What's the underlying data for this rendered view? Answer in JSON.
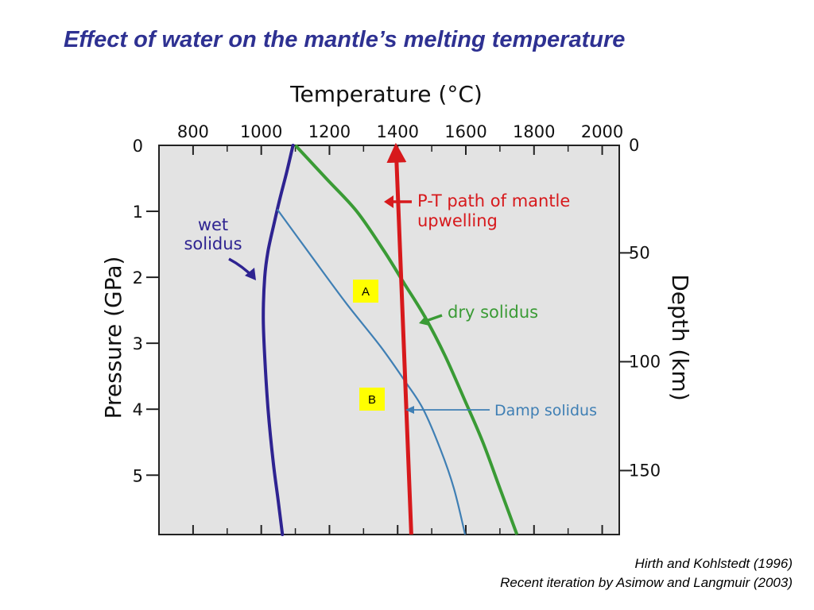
{
  "slide": {
    "title": "Effect of water on the mantle’s melting temperature",
    "credit_line1": "Hirth and Kohlstedt (1996)",
    "credit_line2": "Recent iteration by Asimow and Langmuir (2003)"
  },
  "chart_data": {
    "type": "line",
    "xlabel_top": "Temperature (°C)",
    "ylabel_left": "Pressure (GPa)",
    "ylabel_right": "Depth (km)",
    "xlim": [
      700,
      2050
    ],
    "ylim": [
      0,
      5.9
    ],
    "x_ticks": [
      800,
      1000,
      1200,
      1400,
      1600,
      1800,
      2000
    ],
    "x_tick_labels": [
      "800",
      "1000",
      "1200",
      "1400",
      "1600",
      "1800",
      "2000"
    ],
    "y_ticks": [
      0,
      1,
      2,
      3,
      4,
      5
    ],
    "y_tick_labels": [
      "0",
      "1",
      "2",
      "3",
      "4",
      "5"
    ],
    "depth_ticks": [
      {
        "label": "0",
        "pressure": 0
      },
      {
        "label": "50",
        "pressure": 1.63
      },
      {
        "label": "100",
        "pressure": 3.28
      },
      {
        "label": "150",
        "pressure": 4.93
      }
    ],
    "plot_background": "#e3e3e3",
    "series": [
      {
        "key": "wet",
        "color": "#2e2391",
        "points": [
          [
            1093,
            0
          ],
          [
            1075,
            0.4
          ],
          [
            1055,
            0.8
          ],
          [
            1037,
            1.2
          ],
          [
            1020,
            1.6
          ],
          [
            1010,
            2.0
          ],
          [
            1006,
            2.6
          ],
          [
            1010,
            3.2
          ],
          [
            1020,
            4.0
          ],
          [
            1035,
            4.8
          ],
          [
            1050,
            5.4
          ],
          [
            1062,
            5.9
          ]
        ]
      },
      {
        "key": "dry",
        "color": "#3a9b35",
        "points": [
          [
            1100,
            0
          ],
          [
            1190,
            0.5
          ],
          [
            1280,
            1.0
          ],
          [
            1360,
            1.6
          ],
          [
            1420,
            2.1
          ],
          [
            1480,
            2.6
          ],
          [
            1540,
            3.2
          ],
          [
            1600,
            3.9
          ],
          [
            1650,
            4.5
          ],
          [
            1700,
            5.2
          ],
          [
            1750,
            5.9
          ]
        ]
      },
      {
        "key": "damp",
        "color": "#3f7fb4",
        "points": [
          [
            1047,
            0.97
          ],
          [
            1150,
            1.7
          ],
          [
            1250,
            2.4
          ],
          [
            1350,
            3.05
          ],
          [
            1425,
            3.6
          ],
          [
            1475,
            4.0
          ],
          [
            1525,
            4.6
          ],
          [
            1565,
            5.2
          ],
          [
            1598,
            5.9
          ]
        ]
      },
      {
        "key": "path",
        "color": "#d7191c",
        "points": [
          [
            1440,
            5.9
          ],
          [
            1395,
            0.02
          ]
        ]
      }
    ],
    "annotations": {
      "wet_label": [
        "wet",
        "solidus"
      ],
      "dry_label": "dry solidus",
      "damp_label": "Damp solidus",
      "path_label": [
        "P-T path of mantle",
        "upwelling"
      ],
      "marker_a": "A",
      "marker_b": "B"
    }
  }
}
